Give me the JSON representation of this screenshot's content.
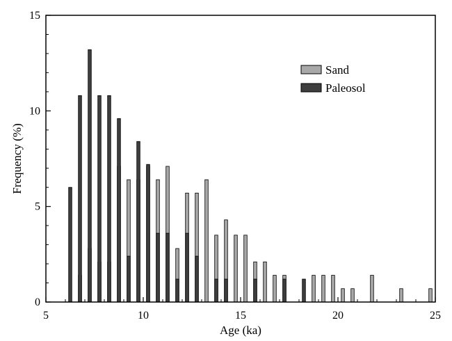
{
  "chart_data": {
    "type": "bar",
    "title": "",
    "xlabel": "Age (ka)",
    "ylabel": "Frequency (%)",
    "xlim": [
      5,
      25
    ],
    "ylim": [
      0,
      15
    ],
    "xticks": [
      5,
      10,
      15,
      20,
      25
    ],
    "yticks": [
      0,
      5,
      10,
      15
    ],
    "grid": false,
    "legend_position": "top-right",
    "bin_width_ka": 0.5,
    "series": [
      {
        "name": "Sand",
        "color": "#a8a8a8",
        "x": [
          6.75,
          7.25,
          7.75,
          8.25,
          8.75,
          9.25,
          9.75,
          10.25,
          10.75,
          11.25,
          11.75,
          12.25,
          12.75,
          13.25,
          13.75,
          14.25,
          14.75,
          15.25,
          15.75,
          16.25,
          16.75,
          17.25,
          18.75,
          19.25,
          19.75,
          20.25,
          20.75,
          21.75,
          23.25,
          24.75
        ],
        "values": [
          1.4,
          2.8,
          2.1,
          2.1,
          7.1,
          6.4,
          6.4,
          7.1,
          6.4,
          7.1,
          2.8,
          5.7,
          5.7,
          6.4,
          3.5,
          4.3,
          3.5,
          3.5,
          2.1,
          2.1,
          1.4,
          1.4,
          1.4,
          1.4,
          1.4,
          0.7,
          0.7,
          1.4,
          0.7,
          0.7
        ]
      },
      {
        "name": "Paleosol",
        "color": "#3e3e3e",
        "x": [
          6.25,
          6.75,
          7.25,
          7.75,
          8.25,
          8.75,
          9.25,
          9.75,
          10.25,
          10.75,
          11.25,
          11.75,
          12.25,
          12.75,
          13.75,
          14.25,
          15.75,
          17.25,
          18.25
        ],
        "values": [
          6.0,
          10.8,
          13.2,
          10.8,
          10.8,
          9.6,
          2.4,
          8.4,
          7.2,
          3.6,
          3.6,
          1.2,
          3.6,
          2.4,
          1.2,
          1.2,
          1.2,
          1.2,
          1.2
        ]
      }
    ]
  }
}
